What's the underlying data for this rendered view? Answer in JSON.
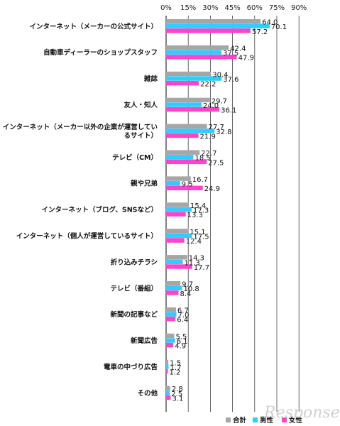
{
  "chart_data": {
    "type": "bar",
    "orientation": "horizontal",
    "xlim": [
      0,
      90
    ],
    "xticks": [
      "0%",
      "15%",
      "30%",
      "45%",
      "60%",
      "75%",
      "90%"
    ],
    "xtick_values": [
      0,
      15,
      30,
      45,
      60,
      75,
      90
    ],
    "grid": true,
    "legend_position": "bottom-right",
    "categories": [
      [
        "インターネット（メーカーの公式サイト）"
      ],
      [
        "自動車ディーラーのショップスタッフ"
      ],
      [
        "雑誌"
      ],
      [
        "友人・知人"
      ],
      [
        "インターネット（メーカー以外の企業が運営してい",
        "るサイト）"
      ],
      [
        "テレビ（CM）"
      ],
      [
        "親や兄弟"
      ],
      [
        "インターネット（ブログ、SNSなど）"
      ],
      [
        "インターネット（個人が運営しているサイト）"
      ],
      [
        "折り込みチラシ"
      ],
      [
        "テレビ（番組）"
      ],
      [
        "新聞の記事など"
      ],
      [
        "新聞広告"
      ],
      [
        "電車の中づり広告"
      ],
      [
        "その他"
      ]
    ],
    "series": [
      {
        "name": "合計",
        "color": "#a6a6a6",
        "values": [
          64.0,
          42.4,
          30.4,
          29.7,
          27.7,
          22.7,
          16.7,
          15.4,
          15.1,
          14.3,
          9.7,
          6.7,
          5.5,
          1.5,
          2.8
        ]
      },
      {
        "name": "男性",
        "color": "#33ccff",
        "values": [
          70.1,
          37.5,
          37.6,
          24.0,
          32.8,
          18.5,
          9.5,
          17.3,
          17.5,
          11.3,
          10.8,
          7.0,
          6.1,
          1.7,
          2.5
        ]
      },
      {
        "name": "女性",
        "color": "#ff44cc",
        "values": [
          57.2,
          47.9,
          22.2,
          36.1,
          21.9,
          27.5,
          24.9,
          13.3,
          12.4,
          17.7,
          8.4,
          6.4,
          4.9,
          1.2,
          3.1
        ]
      }
    ]
  },
  "watermark": "Response."
}
